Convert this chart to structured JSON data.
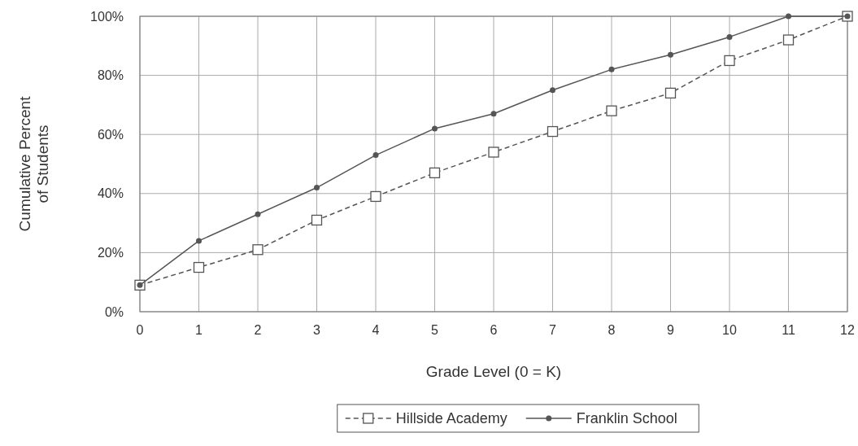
{
  "chart_data": {
    "type": "line",
    "xlabel": "Grade Level (0 = K)",
    "ylabel": "Cumulative Percent\nof Students",
    "x": [
      0,
      1,
      2,
      3,
      4,
      5,
      6,
      7,
      8,
      9,
      10,
      11,
      12
    ],
    "series": [
      {
        "name": "Hillside Academy",
        "color": "#555555",
        "marker": "square",
        "line_style": "dashed",
        "values": [
          9,
          15,
          21,
          31,
          39,
          47,
          54,
          61,
          68,
          74,
          85,
          92,
          100
        ]
      },
      {
        "name": "Franklin School",
        "color": "#555555",
        "marker": "circle",
        "line_style": "solid",
        "values": [
          9,
          24,
          33,
          42,
          53,
          62,
          67,
          75,
          82,
          87,
          93,
          100,
          100
        ]
      }
    ],
    "xlim": [
      0,
      12
    ],
    "xticks": [
      0,
      1,
      2,
      3,
      4,
      5,
      6,
      7,
      8,
      9,
      10,
      11,
      12
    ],
    "ylim": [
      0,
      100
    ],
    "yticks": [
      {
        "value": 0,
        "label": "0%"
      },
      {
        "value": 20,
        "label": "20%"
      },
      {
        "value": 40,
        "label": "40%"
      },
      {
        "value": 60,
        "label": "60%"
      },
      {
        "value": 80,
        "label": "80%"
      },
      {
        "value": 100,
        "label": "100%"
      }
    ],
    "grid": true,
    "legend": "bottom"
  }
}
